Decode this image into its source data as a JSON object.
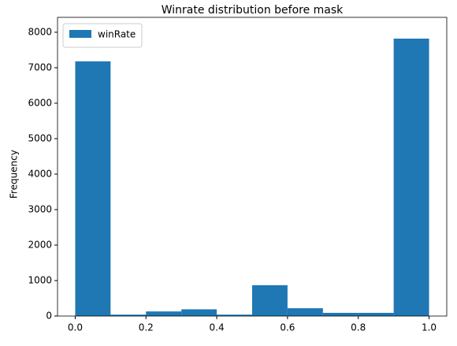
{
  "chart_data": {
    "type": "histogram",
    "title": "Winrate distribution before mask",
    "ylabel": "Frequency",
    "bins": [
      0,
      0.1,
      0.2,
      0.3,
      0.4,
      0.5,
      0.6,
      0.7,
      0.8,
      0.9,
      1.0
    ],
    "series": [
      {
        "name": "winRate",
        "color": "#1f77b4",
        "values": [
          7180,
          40,
          130,
          190,
          40,
          870,
          220,
          90,
          90,
          7820
        ]
      }
    ],
    "xlim": [
      -0.05,
      1.05
    ],
    "xticks": [
      {
        "value": 0,
        "label": "0.0"
      },
      0.2,
      0.4,
      0.6,
      0.8,
      {
        "value": 1,
        "label": "1.0"
      }
    ],
    "ylim": [
      0,
      8420
    ],
    "yticks": [
      0,
      1000,
      2000,
      3000,
      4000,
      5000,
      6000,
      7000,
      8000
    ],
    "legend": "upper left",
    "grid": false
  }
}
